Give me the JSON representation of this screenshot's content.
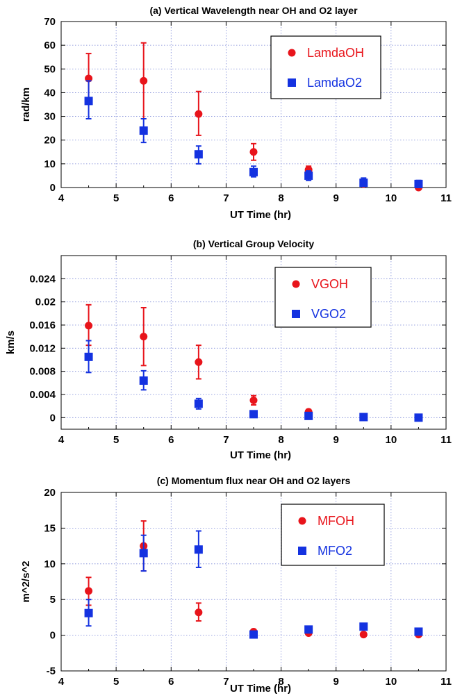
{
  "chart_data": [
    {
      "type": "scatter",
      "title": "(a) Vertical Wavelength near OH and O2 layer",
      "xlabel": "UT Time (hr)",
      "ylabel": "rad/km",
      "xlim": [
        4,
        11
      ],
      "ylim": [
        0,
        70
      ],
      "xticks": [
        4,
        5,
        6,
        7,
        8,
        9,
        10,
        11
      ],
      "yticks": [
        0,
        10,
        20,
        30,
        40,
        50,
        60,
        70
      ],
      "ytick_labels": [
        "0",
        "10",
        "20",
        "30",
        "40",
        "50",
        "60",
        "70"
      ],
      "grid": true,
      "legend_position": "top-right",
      "series": [
        {
          "name": "LamdaOH",
          "color": "#e8141b",
          "marker": "circle",
          "x": [
            4.5,
            5.5,
            6.5,
            7.5,
            8.5,
            9.5,
            10.5
          ],
          "y": [
            46,
            45,
            31,
            15,
            7.5,
            1.5,
            0
          ],
          "err_low": [
            36,
            29,
            22,
            11.5,
            6,
            0.5,
            0
          ],
          "err_high": [
            56.5,
            61,
            40.5,
            18.5,
            9,
            3,
            1
          ]
        },
        {
          "name": "LamdaO2",
          "color": "#1432e0",
          "marker": "square",
          "x": [
            4.5,
            5.5,
            6.5,
            7.5,
            8.5,
            9.5,
            10.5
          ],
          "y": [
            36.5,
            24,
            14,
            6.5,
            5,
            2,
            1.5
          ],
          "err_low": [
            29,
            19,
            10,
            4.5,
            3,
            0.5,
            0
          ],
          "err_high": [
            45,
            29,
            17.5,
            9,
            7,
            4,
            3
          ]
        }
      ]
    },
    {
      "type": "scatter",
      "title": "(b) Vertical Group Velocity",
      "xlabel": "UT Time (hr)",
      "ylabel": "km/s",
      "xlim": [
        4,
        11
      ],
      "ylim": [
        -0.002,
        0.028
      ],
      "xticks": [
        4,
        5,
        6,
        7,
        8,
        9,
        10,
        11
      ],
      "yticks": [
        0,
        0.004,
        0.008,
        0.012,
        0.016,
        0.02,
        0.024
      ],
      "ytick_labels": [
        "0",
        "0.004",
        "0.008",
        "0.012",
        "0.016",
        "0.02",
        "0.024"
      ],
      "grid": true,
      "legend_position": "top-right",
      "series": [
        {
          "name": "VGOH",
          "color": "#e8141b",
          "marker": "circle",
          "x": [
            4.5,
            5.5,
            6.5,
            7.5,
            8.5
          ],
          "y": [
            0.0159,
            0.014,
            0.0096,
            0.003,
            0.001
          ],
          "err_low": [
            0.0125,
            0.009,
            0.0067,
            0.0022,
            0.0006
          ],
          "err_high": [
            0.0195,
            0.019,
            0.0125,
            0.0038,
            0.0014
          ]
        },
        {
          "name": "VGO2",
          "color": "#1432e0",
          "marker": "square",
          "x": [
            4.5,
            5.5,
            6.5,
            7.5,
            8.5,
            9.5,
            10.5
          ],
          "y": [
            0.0105,
            0.0064,
            0.0024,
            0.0006,
            0.0003,
            0.0001,
            0
          ],
          "err_low": [
            0.0078,
            0.0048,
            0.0015,
            0.0003,
            0.0001,
            0,
            0
          ],
          "err_high": [
            0.0133,
            0.0081,
            0.0033,
            0.0009,
            0.0005,
            0.0002,
            0.0001
          ]
        }
      ]
    },
    {
      "type": "scatter",
      "title": "(c) Momentum flux near OH and O2 layers",
      "xlabel": "UT Time (hr)",
      "ylabel": "m^2/s^2",
      "xlim": [
        4,
        11
      ],
      "ylim": [
        -5,
        20
      ],
      "xticks": [
        4,
        5,
        6,
        7,
        8,
        9,
        10,
        11
      ],
      "yticks": [
        -5,
        0,
        5,
        10,
        15,
        20
      ],
      "ytick_labels": [
        "-5",
        "0",
        "5",
        "10",
        "15",
        "20"
      ],
      "grid": true,
      "legend_position": "top-right",
      "series": [
        {
          "name": "MFOH",
          "color": "#e8141b",
          "marker": "circle",
          "x": [
            4.5,
            5.5,
            6.5,
            7.5,
            8.5,
            9.5,
            10.5
          ],
          "y": [
            6.2,
            12.5,
            3.2,
            0.5,
            0.3,
            0.1,
            0.1
          ],
          "err_low": [
            4.2,
            9,
            2,
            0.3,
            0.1,
            0,
            0
          ],
          "err_high": [
            8.1,
            16,
            4.5,
            0.7,
            0.5,
            0.2,
            0.2
          ]
        },
        {
          "name": "MFO2",
          "color": "#1432e0",
          "marker": "square",
          "x": [
            4.5,
            5.5,
            6.5,
            7.5,
            8.5,
            9.5,
            10.5
          ],
          "y": [
            3.1,
            11.5,
            12,
            0.1,
            0.8,
            1.2,
            0.5
          ],
          "err_low": [
            1.3,
            9,
            9.5,
            0,
            0.5,
            0.9,
            0.3
          ],
          "err_high": [
            5,
            14,
            14.6,
            0.2,
            1.1,
            1.5,
            0.7
          ]
        }
      ]
    }
  ]
}
